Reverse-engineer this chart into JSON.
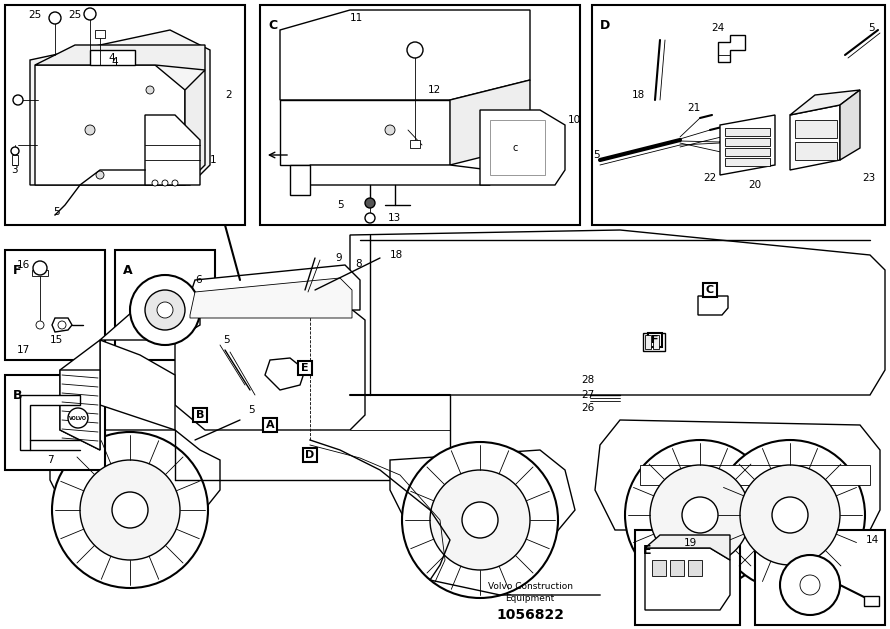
{
  "bg_color": "#ffffff",
  "line_color": "#000000",
  "fig_width": 8.9,
  "fig_height": 6.29,
  "dpi": 100,
  "part_number": "1056822",
  "company_line1": "Volvo Construction",
  "company_line2": "Equipment"
}
